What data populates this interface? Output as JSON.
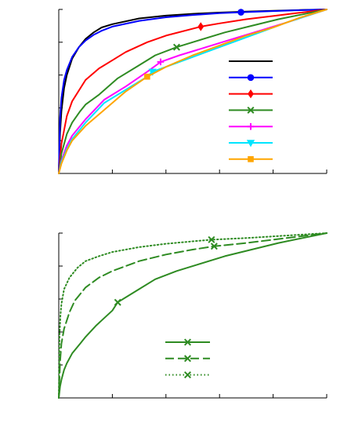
{
  "chart_data": [
    {
      "type": "line",
      "title": "",
      "xlabel": "",
      "ylabel": "",
      "xlim": [
        0,
        1
      ],
      "ylim": [
        0,
        1
      ],
      "grid": false,
      "legend": "center-right",
      "x_ticks": [
        0,
        0.2,
        0.4,
        0.6,
        0.8,
        1.0
      ],
      "y_ticks": [
        0,
        0.2,
        0.4,
        0.6,
        0.8,
        1.0
      ],
      "series": [
        {
          "color": "#000000",
          "marker": "none",
          "x": [
            0,
            0.005,
            0.01,
            0.02,
            0.03,
            0.05,
            0.075,
            0.1,
            0.13,
            0.16,
            0.2,
            0.3,
            0.4,
            0.5,
            0.6,
            0.7,
            0.8,
            0.9,
            1.0
          ],
          "y": [
            0,
            0.25,
            0.38,
            0.52,
            0.6,
            0.7,
            0.77,
            0.82,
            0.86,
            0.89,
            0.91,
            0.945,
            0.962,
            0.973,
            0.981,
            0.987,
            0.992,
            0.996,
            1.0
          ]
        },
        {
          "color": "#0000ff",
          "marker": "circle",
          "x": [
            0,
            0.005,
            0.01,
            0.02,
            0.03,
            0.05,
            0.075,
            0.1,
            0.13,
            0.16,
            0.2,
            0.3,
            0.4,
            0.5,
            0.6,
            0.68,
            0.8,
            0.9,
            1.0
          ],
          "y": [
            0,
            0.34,
            0.46,
            0.57,
            0.63,
            0.71,
            0.77,
            0.81,
            0.845,
            0.87,
            0.895,
            0.93,
            0.952,
            0.966,
            0.977,
            0.983,
            0.99,
            0.995,
            1.0
          ]
        },
        {
          "color": "#ff0000",
          "marker": "diamond",
          "x": [
            0,
            0.01,
            0.03,
            0.05,
            0.1,
            0.15,
            0.2,
            0.25,
            0.33,
            0.4,
            0.53,
            0.6,
            0.7,
            0.8,
            0.9,
            1.0
          ],
          "y": [
            0,
            0.18,
            0.35,
            0.44,
            0.57,
            0.64,
            0.69,
            0.74,
            0.8,
            0.84,
            0.895,
            0.915,
            0.94,
            0.96,
            0.98,
            1.0
          ]
        },
        {
          "color": "#2e8b22",
          "marker": "x",
          "x": [
            0,
            0.01,
            0.03,
            0.05,
            0.08,
            0.1,
            0.15,
            0.22,
            0.3,
            0.36,
            0.44,
            0.52,
            0.62,
            0.72,
            0.82,
            0.91,
            1.0
          ],
          "y": [
            0,
            0.12,
            0.24,
            0.31,
            0.38,
            0.42,
            0.48,
            0.58,
            0.66,
            0.72,
            0.77,
            0.81,
            0.86,
            0.9,
            0.94,
            0.97,
            1.0
          ]
        },
        {
          "color": "#ff00ff",
          "marker": "plus",
          "x": [
            0,
            0.01,
            0.03,
            0.05,
            0.1,
            0.17,
            0.25,
            0.33,
            0.38,
            0.45,
            0.55,
            0.65,
            0.75,
            0.85,
            1.0
          ],
          "y": [
            0,
            0.08,
            0.17,
            0.23,
            0.33,
            0.45,
            0.53,
            0.62,
            0.68,
            0.72,
            0.77,
            0.82,
            0.87,
            0.92,
            1.0
          ]
        },
        {
          "color": "#00e5ff",
          "marker": "triangle-down",
          "x": [
            0,
            0.01,
            0.03,
            0.05,
            0.1,
            0.17,
            0.25,
            0.33,
            0.35,
            0.45,
            0.55,
            0.65,
            0.75,
            0.85,
            1.0
          ],
          "y": [
            0,
            0.07,
            0.15,
            0.21,
            0.31,
            0.43,
            0.51,
            0.59,
            0.62,
            0.68,
            0.74,
            0.8,
            0.86,
            0.92,
            1.0
          ]
        },
        {
          "color": "#ffa500",
          "marker": "square",
          "x": [
            0,
            0.01,
            0.03,
            0.05,
            0.1,
            0.15,
            0.2,
            0.25,
            0.33,
            0.4,
            0.5,
            0.6,
            0.7,
            0.8,
            0.9,
            1.0
          ],
          "y": [
            0,
            0.06,
            0.14,
            0.2,
            0.29,
            0.36,
            0.43,
            0.5,
            0.59,
            0.65,
            0.72,
            0.78,
            0.84,
            0.89,
            0.95,
            1.0
          ]
        }
      ]
    },
    {
      "type": "line",
      "title": "",
      "xlabel": "",
      "ylabel": "",
      "xlim": [
        0,
        1
      ],
      "ylim": [
        0,
        1
      ],
      "grid": false,
      "legend": "lower-center",
      "x_ticks": [
        0,
        0.2,
        0.4,
        0.6,
        0.8,
        1.0
      ],
      "y_ticks": [
        0,
        0.2,
        0.4,
        0.6,
        0.8,
        1.0
      ],
      "series": [
        {
          "color": "#2e8b22",
          "marker": "x",
          "linestyle": "solid",
          "x": [
            0,
            0.005,
            0.01,
            0.02,
            0.03,
            0.05,
            0.08,
            0.1,
            0.14,
            0.2,
            0.22,
            0.3,
            0.36,
            0.44,
            0.52,
            0.62,
            0.72,
            0.82,
            0.91,
            1.0
          ],
          "y": [
            0,
            0.07,
            0.11,
            0.17,
            0.21,
            0.27,
            0.33,
            0.37,
            0.44,
            0.53,
            0.58,
            0.66,
            0.72,
            0.77,
            0.81,
            0.86,
            0.9,
            0.94,
            0.97,
            1.0
          ]
        },
        {
          "color": "#2e8b22",
          "marker": "x",
          "linestyle": "dashed",
          "x": [
            0,
            0.005,
            0.01,
            0.02,
            0.04,
            0.06,
            0.1,
            0.15,
            0.2,
            0.3,
            0.4,
            0.5,
            0.58,
            0.7,
            0.8,
            0.9,
            1.0
          ],
          "y": [
            0,
            0.22,
            0.33,
            0.42,
            0.52,
            0.59,
            0.67,
            0.73,
            0.77,
            0.83,
            0.87,
            0.9,
            0.92,
            0.94,
            0.96,
            0.98,
            1.0
          ]
        },
        {
          "color": "#2e8b22",
          "marker": "x",
          "linestyle": "dotted",
          "x": [
            0,
            0.003,
            0.006,
            0.01,
            0.02,
            0.04,
            0.07,
            0.1,
            0.15,
            0.2,
            0.3,
            0.4,
            0.5,
            0.57,
            0.7,
            0.8,
            0.9,
            1.0
          ],
          "y": [
            0,
            0.38,
            0.5,
            0.57,
            0.66,
            0.73,
            0.79,
            0.83,
            0.86,
            0.885,
            0.915,
            0.935,
            0.95,
            0.96,
            0.97,
            0.98,
            0.99,
            1.0
          ]
        }
      ]
    }
  ]
}
